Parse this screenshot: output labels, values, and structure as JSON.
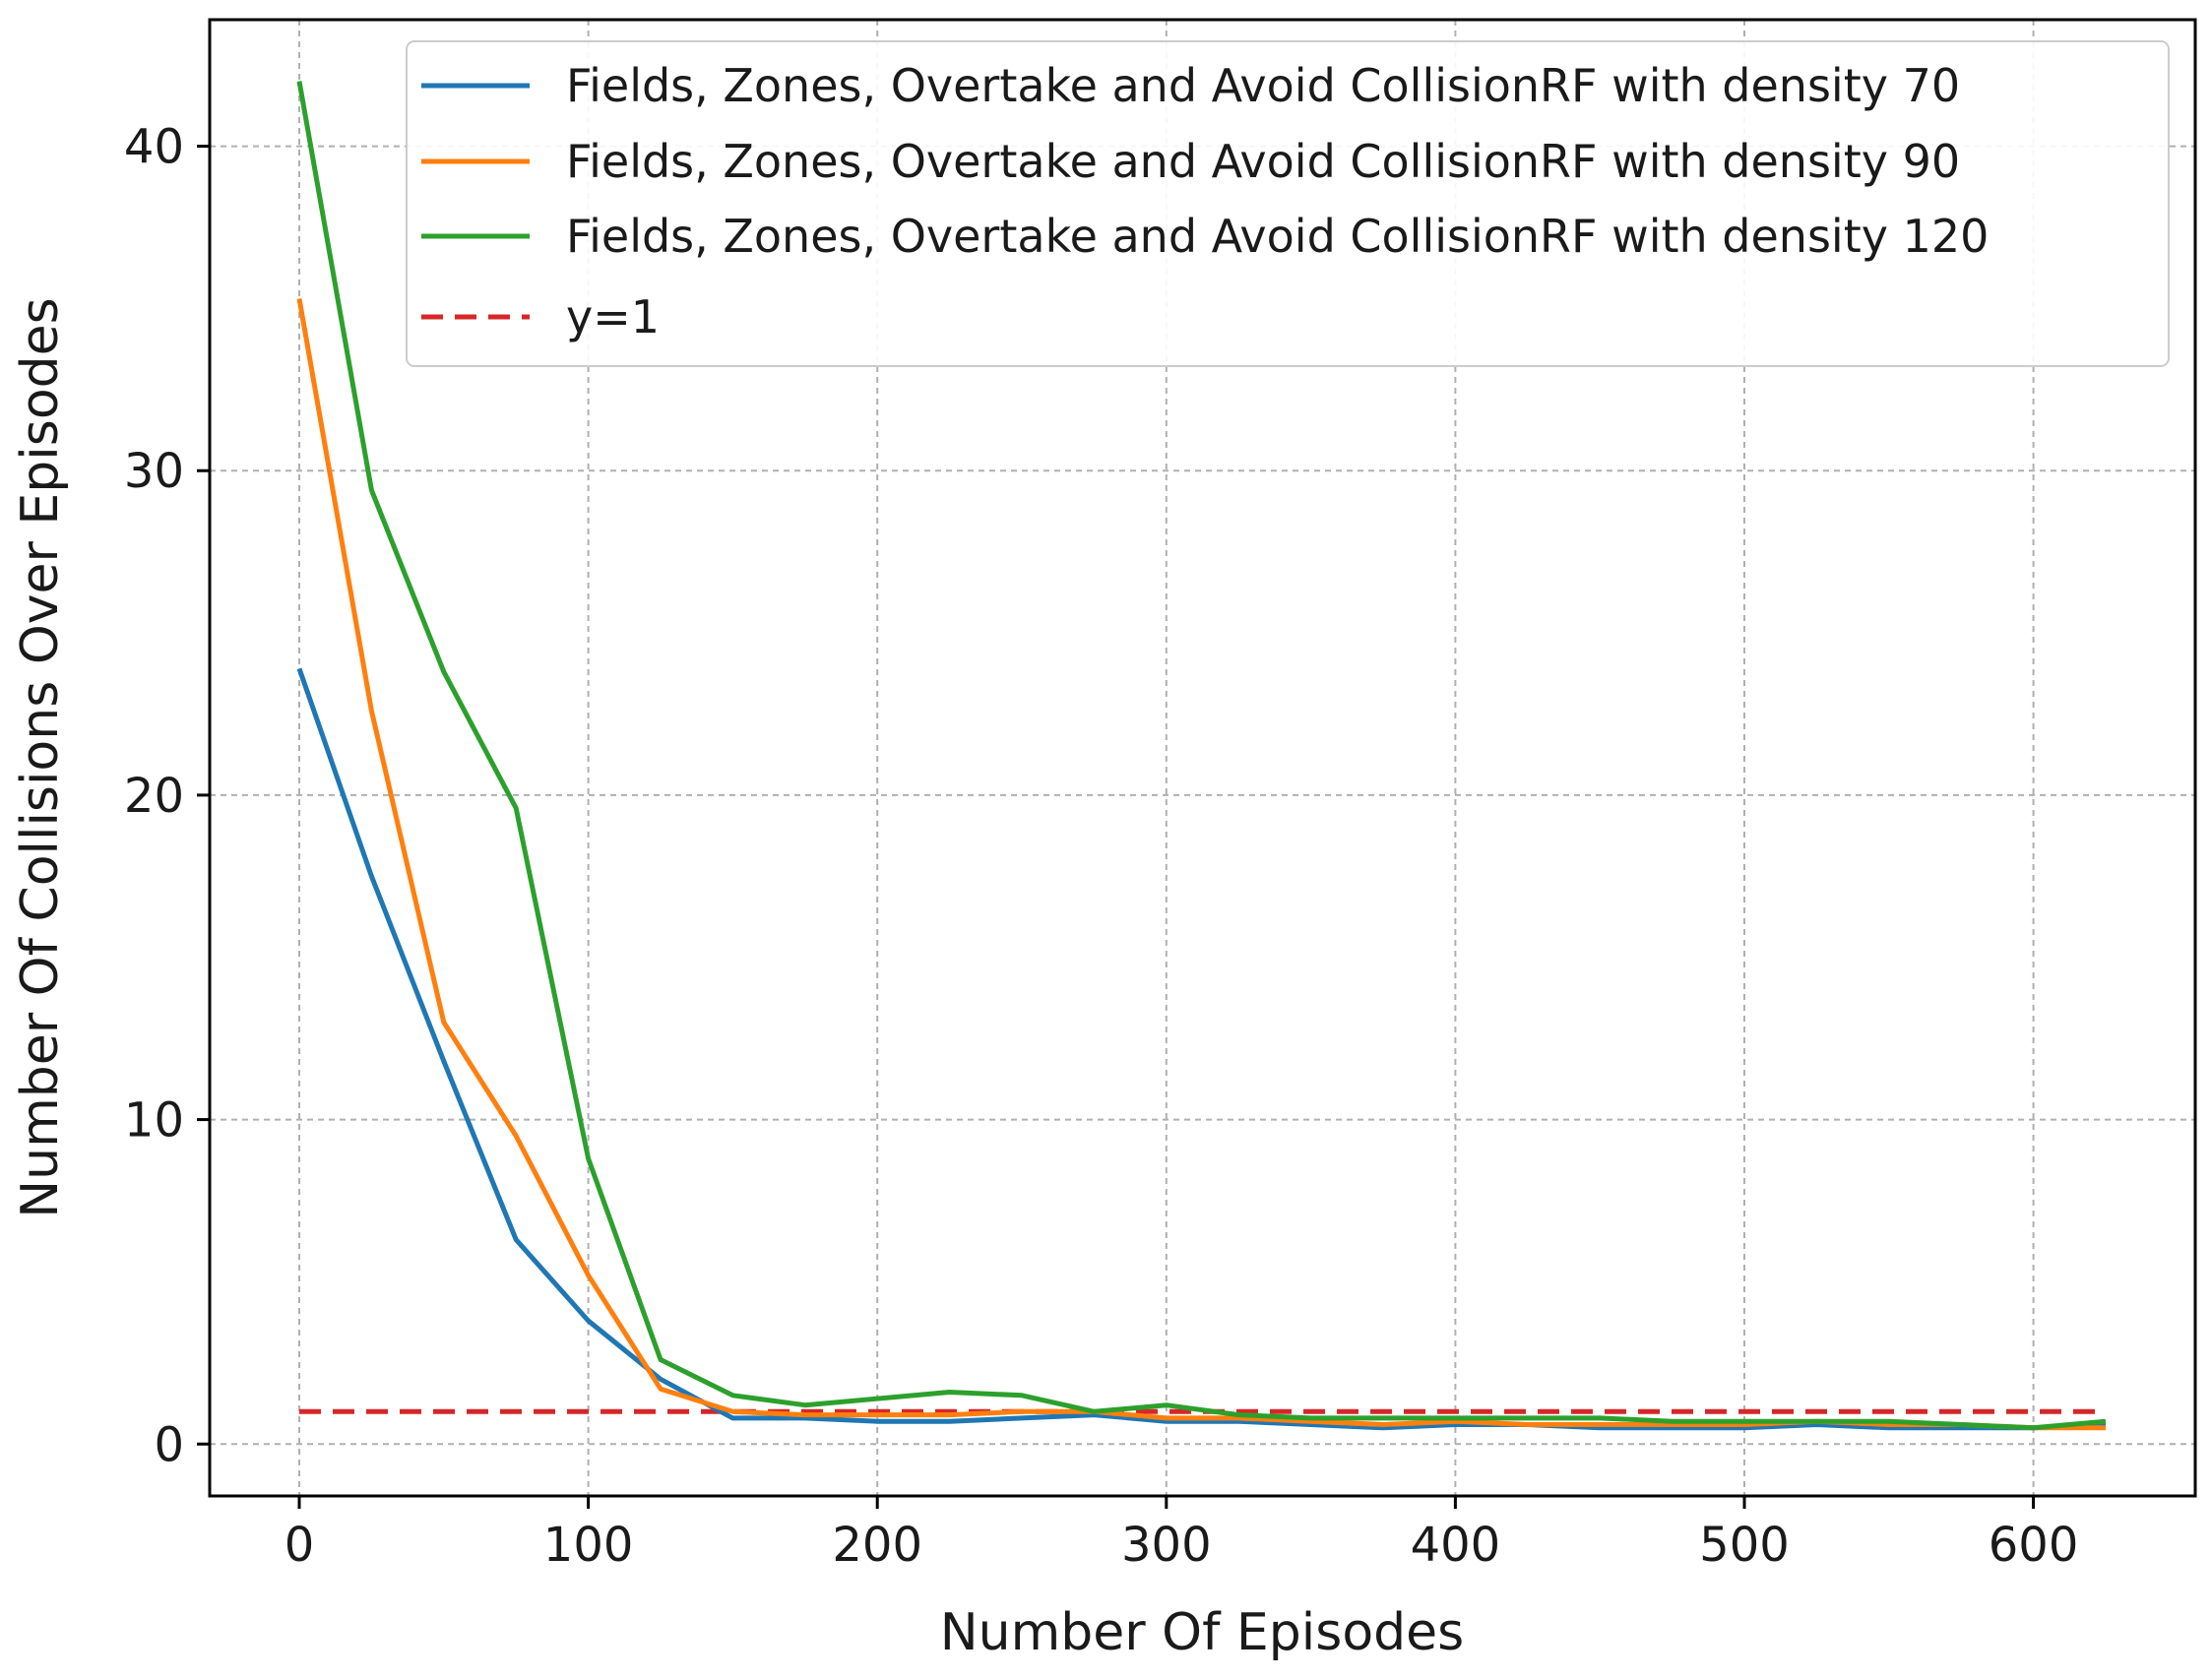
{
  "chart_data": {
    "type": "line",
    "title": "",
    "xlabel": "Number Of Episodes",
    "ylabel": "Number Of Collisions Over Episodes",
    "xlim": [
      -31,
      656
    ],
    "ylim": [
      -1.6,
      43.9
    ],
    "xticks": [
      0,
      100,
      200,
      300,
      400,
      500,
      600
    ],
    "yticks": [
      0,
      10,
      20,
      30,
      40
    ],
    "grid": true,
    "legend_position": "top-right",
    "x": [
      0,
      25,
      50,
      75,
      100,
      125,
      150,
      175,
      200,
      225,
      250,
      275,
      300,
      325,
      350,
      375,
      400,
      425,
      450,
      475,
      500,
      525,
      550,
      575,
      600,
      625
    ],
    "series": [
      {
        "name": "Fields, Zones, Overtake and Avoid CollisionRF with density 70",
        "color": "#1f77b4",
        "dashed": false,
        "values": [
          23.9,
          17.5,
          11.8,
          6.3,
          3.8,
          2.0,
          0.8,
          0.8,
          0.7,
          0.7,
          0.8,
          0.9,
          0.7,
          0.7,
          0.6,
          0.5,
          0.6,
          0.6,
          0.5,
          0.5,
          0.5,
          0.6,
          0.5,
          0.5,
          0.5,
          0.6
        ]
      },
      {
        "name": "Fields, Zones, Overtake and Avoid CollisionRF with density 90",
        "color": "#ff7f0e",
        "dashed": false,
        "values": [
          35.3,
          22.6,
          13.0,
          9.5,
          5.2,
          1.7,
          1.0,
          0.9,
          0.9,
          0.9,
          1.0,
          1.0,
          0.8,
          0.8,
          0.7,
          0.6,
          0.7,
          0.6,
          0.6,
          0.6,
          0.6,
          0.7,
          0.6,
          0.6,
          0.5,
          0.5
        ]
      },
      {
        "name": "Fields, Zones, Overtake and Avoid CollisionRF with density 120",
        "color": "#2ca02c",
        "dashed": false,
        "values": [
          42.0,
          29.4,
          23.8,
          19.6,
          8.8,
          2.6,
          1.5,
          1.2,
          1.4,
          1.6,
          1.5,
          1.0,
          1.2,
          0.9,
          0.8,
          0.8,
          0.8,
          0.8,
          0.8,
          0.7,
          0.7,
          0.7,
          0.7,
          0.6,
          0.5,
          0.7
        ]
      },
      {
        "name": "y=1",
        "color": "#d62728",
        "dashed": true,
        "values": [
          1,
          1,
          1,
          1,
          1,
          1,
          1,
          1,
          1,
          1,
          1,
          1,
          1,
          1,
          1,
          1,
          1,
          1,
          1,
          1,
          1,
          1,
          1,
          1,
          1,
          1
        ]
      }
    ]
  }
}
